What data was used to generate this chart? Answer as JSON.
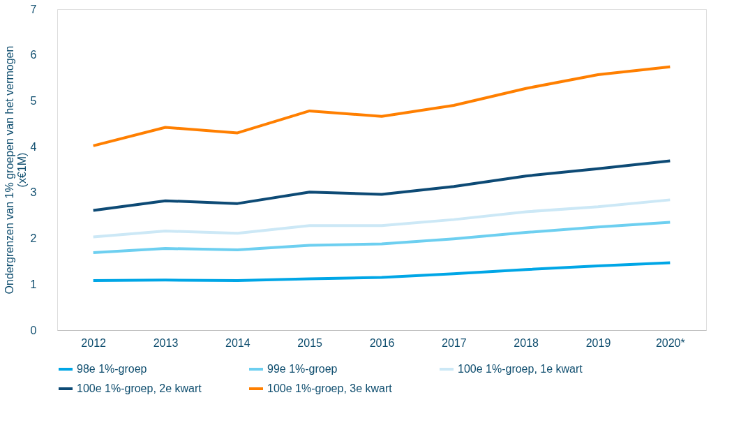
{
  "chart_data": {
    "type": "line",
    "ylabel": "Ondergrenzen van 1% groepen van het vermogen\n(x€1M)",
    "categories": [
      "2012",
      "2013",
      "2014",
      "2015",
      "2016",
      "2017",
      "2018",
      "2019",
      "2020*"
    ],
    "ylim": [
      0,
      7
    ],
    "yticks": [
      0,
      1,
      2,
      3,
      4,
      5,
      6,
      7
    ],
    "grid": false,
    "legend": "bottom",
    "marker": "none",
    "line_style": "solid",
    "series": [
      {
        "name": "98e 1%-groep",
        "color": "#00a6e6",
        "values": [
          1.08,
          1.09,
          1.08,
          1.12,
          1.15,
          1.23,
          1.32,
          1.4,
          1.47
        ]
      },
      {
        "name": "99e 1%-groep",
        "color": "#6dcff0",
        "values": [
          1.69,
          1.78,
          1.75,
          1.85,
          1.88,
          1.99,
          2.13,
          2.25,
          2.35
        ]
      },
      {
        "name": "100e 1%-groep, 1e kwart",
        "color": "#cce8f6",
        "values": [
          2.03,
          2.16,
          2.11,
          2.28,
          2.28,
          2.41,
          2.58,
          2.69,
          2.84
        ]
      },
      {
        "name": "100e 1%-groep, 2e kwart",
        "color": "#0d4a75",
        "values": [
          2.61,
          2.82,
          2.76,
          3.01,
          2.96,
          3.13,
          3.36,
          3.52,
          3.69
        ]
      },
      {
        "name": "100e 1%-groep, 3e kwart",
        "color": "#ff7f00",
        "values": [
          4.02,
          4.42,
          4.3,
          4.78,
          4.66,
          4.9,
          5.27,
          5.57,
          5.74
        ]
      }
    ]
  }
}
